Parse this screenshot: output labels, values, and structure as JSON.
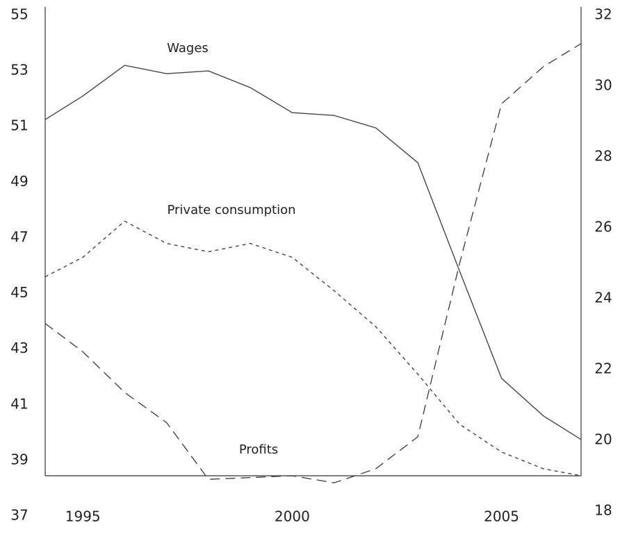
{
  "chart_data": {
    "type": "line",
    "x": [
      1994.1,
      1995,
      1996,
      1997,
      1998,
      1999,
      2000,
      2001,
      2002,
      2003,
      2004,
      2005,
      2006,
      2006.9
    ],
    "series": [
      {
        "name": "Wages",
        "color": "#444444",
        "dash": "none",
        "values": [
          51.25,
          52.1,
          53.2,
          52.9,
          53.0,
          52.4,
          51.5,
          51.4,
          50.95,
          49.7,
          45.8,
          41.95,
          40.6,
          39.75
        ]
      },
      {
        "name": "Private consumption",
        "color": "#444444",
        "dash": "5 5",
        "values": [
          45.6,
          46.3,
          47.6,
          46.8,
          46.5,
          46.8,
          46.3,
          45.1,
          43.8,
          42.1,
          40.3,
          39.3,
          38.7,
          38.45
        ]
      },
      {
        "name": "Profits",
        "color": "#444444",
        "dash": "14 8",
        "axis": "y2",
        "values": [
          23.3,
          22.5,
          21.35,
          20.5,
          18.9,
          18.95,
          19.0,
          18.8,
          19.2,
          20.1,
          25.0,
          29.5,
          30.55,
          31.2
        ]
      }
    ],
    "xlim": [
      1994.1,
      2006.9
    ],
    "xticks": [
      1995,
      2000,
      2005
    ],
    "ylim": [
      37,
      55
    ],
    "yticks": [
      37,
      39,
      41,
      43,
      45,
      47,
      49,
      51,
      53,
      55
    ],
    "y2lim": [
      18,
      32
    ],
    "y2ticks": [
      18,
      20,
      22,
      24,
      26,
      28,
      30,
      32
    ]
  }
}
